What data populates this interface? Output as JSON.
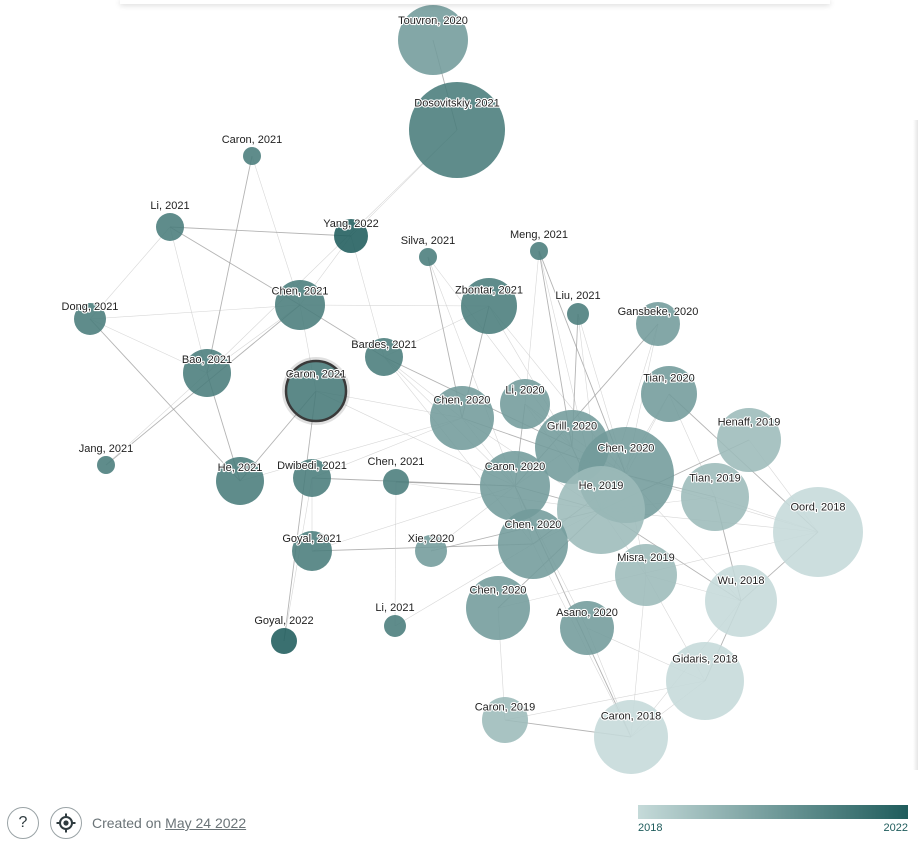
{
  "graph": {
    "nodes": [
      {
        "id": "touvron2020",
        "label": "Touvron, 2020",
        "year": 2020
      },
      {
        "id": "dosovitskiy2021",
        "label": "Dosovitskiy, 2021",
        "year": 2021
      },
      {
        "id": "caron2021a",
        "label": "Caron, 2021",
        "year": 2021
      },
      {
        "id": "li2021a",
        "label": "Li, 2021",
        "year": 2021
      },
      {
        "id": "yang2022",
        "label": "Yang, 2022",
        "year": 2022
      },
      {
        "id": "silva2021",
        "label": "Silva, 2021",
        "year": 2021
      },
      {
        "id": "meng2021",
        "label": "Meng, 2021",
        "year": 2021
      },
      {
        "id": "dong2021",
        "label": "Dong, 2021",
        "year": 2021
      },
      {
        "id": "chen2021a",
        "label": "Chen, 2021",
        "year": 2021
      },
      {
        "id": "zbontar2021",
        "label": "Zbontar, 2021",
        "year": 2021
      },
      {
        "id": "liu2021",
        "label": "Liu, 2021",
        "year": 2021
      },
      {
        "id": "gansbeke2020",
        "label": "Gansbeke, 2020",
        "year": 2020
      },
      {
        "id": "bardes2021",
        "label": "Bardes, 2021",
        "year": 2021
      },
      {
        "id": "bao2021",
        "label": "Bao, 2021",
        "year": 2021
      },
      {
        "id": "caron2021b",
        "label": "Caron, 2021",
        "year": 2021,
        "selected": true
      },
      {
        "id": "li2020",
        "label": "Li, 2020",
        "year": 2020
      },
      {
        "id": "tian2020",
        "label": "Tian, 2020",
        "year": 2020
      },
      {
        "id": "chen2020a",
        "label": "Chen, 2020",
        "year": 2020
      },
      {
        "id": "henaff2019",
        "label": "Henaff, 2019",
        "year": 2019
      },
      {
        "id": "grill2020",
        "label": "Grill, 2020",
        "year": 2020
      },
      {
        "id": "jang2021",
        "label": "Jang, 2021",
        "year": 2021
      },
      {
        "id": "chen2020b",
        "label": "Chen, 2020",
        "year": 2020
      },
      {
        "id": "he2021",
        "label": "He, 2021",
        "year": 2021
      },
      {
        "id": "dwibedi2021",
        "label": "Dwibedi, 2021",
        "year": 2021
      },
      {
        "id": "chen2021b",
        "label": "Chen, 2021",
        "year": 2021
      },
      {
        "id": "caron2020",
        "label": "Caron, 2020",
        "year": 2020
      },
      {
        "id": "he2019",
        "label": "He, 2019",
        "year": 2019
      },
      {
        "id": "tian2019",
        "label": "Tian, 2019",
        "year": 2019
      },
      {
        "id": "oord2018",
        "label": "Oord, 2018",
        "year": 2018
      },
      {
        "id": "goyal2021",
        "label": "Goyal, 2021",
        "year": 2021
      },
      {
        "id": "xie2020",
        "label": "Xie, 2020",
        "year": 2020
      },
      {
        "id": "chen2020c",
        "label": "Chen, 2020",
        "year": 2020
      },
      {
        "id": "misra2019",
        "label": "Misra, 2019",
        "year": 2019
      },
      {
        "id": "wu2018",
        "label": "Wu, 2018",
        "year": 2018
      },
      {
        "id": "chen2020d",
        "label": "Chen, 2020",
        "year": 2020
      },
      {
        "id": "asano2020",
        "label": "Asano, 2020",
        "year": 2020
      },
      {
        "id": "li2021b",
        "label": "Li, 2021",
        "year": 2021
      },
      {
        "id": "goyal2022",
        "label": "Goyal, 2022",
        "year": 2022
      },
      {
        "id": "gidaris2018",
        "label": "Gidaris, 2018",
        "year": 2018
      },
      {
        "id": "caron2019",
        "label": "Caron, 2019",
        "year": 2019
      },
      {
        "id": "caron2018",
        "label": "Caron, 2018",
        "year": 2018
      }
    ]
  },
  "footer": {
    "help_icon": "help-icon",
    "help_label": "?",
    "locate_icon": "crosshair-icon",
    "created_prefix": "Created on",
    "created_date": "May 24 2022"
  },
  "scale": {
    "min_label": "2018",
    "max_label": "2022",
    "color_min": "#c5dad9",
    "color_max": "#1f5c5c"
  }
}
